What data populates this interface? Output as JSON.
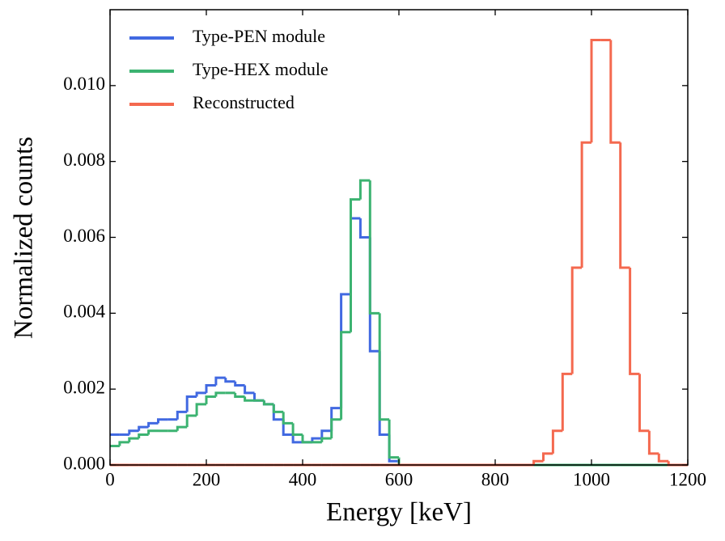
{
  "chart_data": {
    "type": "histogram",
    "xlabel": "Energy [keV]",
    "ylabel": "Normalized counts",
    "bins": [
      0,
      20,
      40,
      60,
      80,
      100,
      120,
      140,
      160,
      180,
      200,
      220,
      240,
      260,
      280,
      300,
      320,
      340,
      360,
      380,
      400,
      420,
      440,
      460,
      480,
      500,
      520,
      540,
      560,
      580,
      600,
      620,
      640,
      660,
      680,
      700,
      720,
      740,
      760,
      780,
      800,
      820,
      840,
      860,
      880,
      900,
      920,
      940,
      960,
      980,
      1000,
      1020,
      1040,
      1060,
      1080,
      1100,
      1120,
      1140,
      1160,
      1180,
      1200
    ],
    "series": [
      {
        "name": "Type-PEN module",
        "color": "#4169e1",
        "values": [
          0.0008,
          0.0008,
          0.0009,
          0.001,
          0.0011,
          0.0012,
          0.0012,
          0.0014,
          0.0018,
          0.0019,
          0.0021,
          0.0023,
          0.0022,
          0.0021,
          0.0019,
          0.0017,
          0.0016,
          0.0012,
          0.0008,
          0.0006,
          0.0006,
          0.0007,
          0.0009,
          0.0015,
          0.0045,
          0.0065,
          0.006,
          0.003,
          0.0008,
          0.0001,
          0,
          0,
          0,
          0,
          0,
          0,
          0,
          0,
          0,
          0,
          0,
          0,
          0,
          0,
          0,
          0,
          0,
          0,
          0,
          0,
          0,
          0,
          0,
          0,
          0,
          0,
          0,
          0,
          0,
          0
        ]
      },
      {
        "name": "Type-HEX module",
        "color": "#3cb371",
        "values": [
          0.0005,
          0.0006,
          0.0007,
          0.0008,
          0.0009,
          0.0009,
          0.0009,
          0.001,
          0.0013,
          0.0016,
          0.0018,
          0.0019,
          0.0019,
          0.0018,
          0.0017,
          0.0017,
          0.0016,
          0.0014,
          0.0011,
          0.0008,
          0.0006,
          0.0006,
          0.0007,
          0.0012,
          0.0035,
          0.007,
          0.0075,
          0.004,
          0.0012,
          0.0002,
          0,
          0,
          0,
          0,
          0,
          0,
          0,
          0,
          0,
          0,
          0,
          0,
          0,
          0,
          0,
          0,
          0,
          0,
          0,
          0,
          0,
          0,
          0,
          0,
          0,
          0,
          0,
          0,
          0,
          0
        ]
      },
      {
        "name": "Reconstructed",
        "color": "#f4694f",
        "values": [
          0,
          0,
          0,
          0,
          0,
          0,
          0,
          0,
          0,
          0,
          0,
          0,
          0,
          0,
          0,
          0,
          0,
          0,
          0,
          0,
          0,
          0,
          0,
          0,
          0,
          0,
          0,
          0,
          0,
          0,
          0,
          0,
          0,
          0,
          0,
          0,
          0,
          0,
          0,
          0,
          0,
          0,
          0,
          0,
          0.0001,
          0.0003,
          0.0009,
          0.0024,
          0.0052,
          0.0085,
          0.0112,
          0.0112,
          0.0085,
          0.0052,
          0.0024,
          0.0009,
          0.0003,
          0.0001,
          0,
          0
        ]
      }
    ],
    "xlim": [
      0,
      1200
    ],
    "xticks": [
      0,
      200,
      400,
      600,
      800,
      1000,
      1200
    ],
    "ylim": [
      0,
      0.012
    ],
    "yticks": [
      {
        "value": 0,
        "label": "0.000"
      },
      {
        "value": 0.002,
        "label": "0.002"
      },
      {
        "value": 0.004,
        "label": "0.004"
      },
      {
        "value": 0.006,
        "label": "0.006"
      },
      {
        "value": 0.008,
        "label": "0.008"
      },
      {
        "value": 0.01,
        "label": "0.010"
      }
    ],
    "legend": "upper-left"
  }
}
